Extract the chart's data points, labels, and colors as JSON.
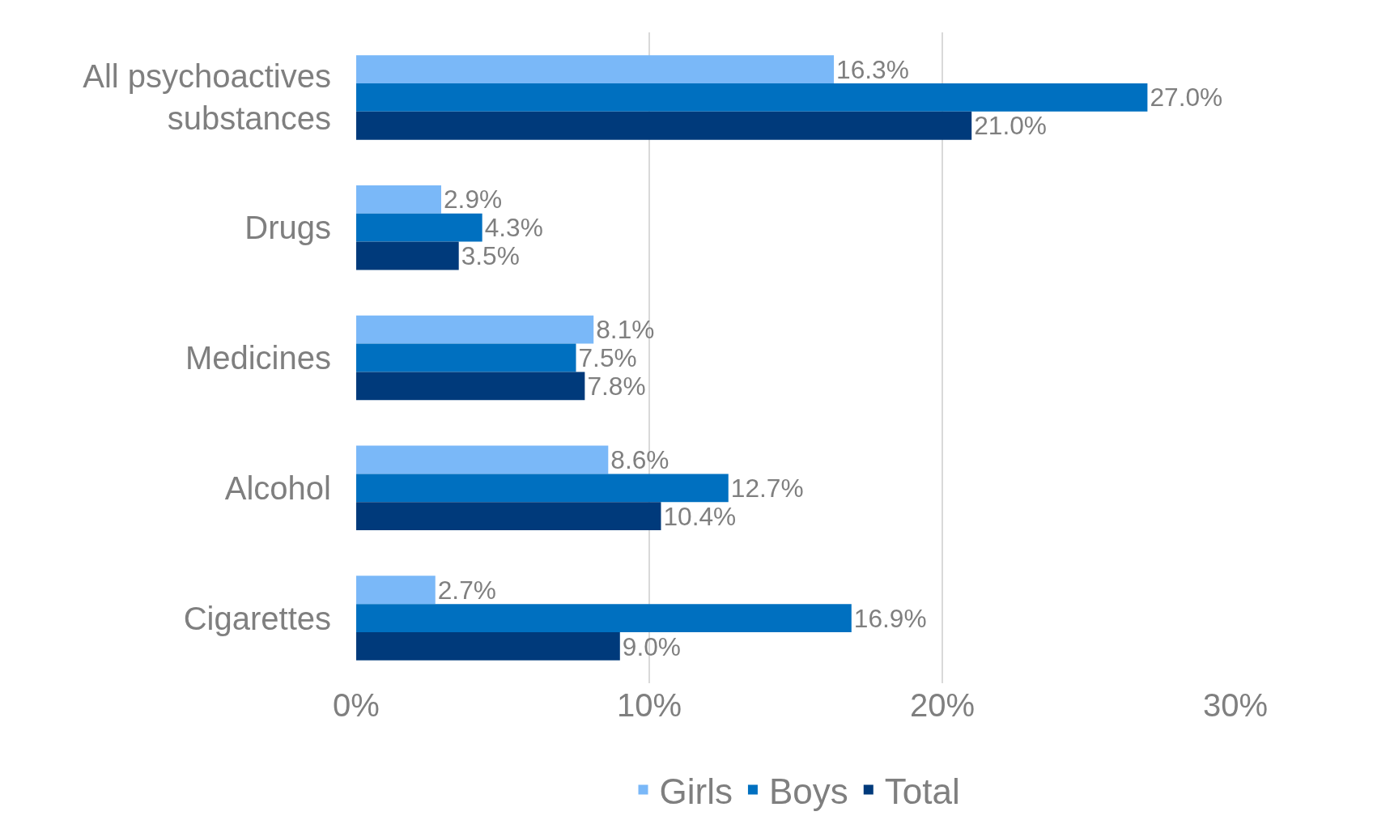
{
  "chart_data": {
    "type": "bar",
    "orientation": "horizontal",
    "categories": [
      "All psychoactives substances",
      "Drugs",
      "Medicines",
      "Alcohol",
      "Cigarettes"
    ],
    "series": [
      {
        "name": "Girls",
        "color": "#7ab8f8",
        "values": [
          16.3,
          2.9,
          8.1,
          8.6,
          2.7
        ],
        "value_labels": [
          "16.3%",
          "2.9%",
          "8.1%",
          "8.6%",
          "2.7%"
        ]
      },
      {
        "name": "Boys",
        "color": "#0070c0",
        "values": [
          27.0,
          4.3,
          7.5,
          12.7,
          16.9
        ],
        "value_labels": [
          "27.0%",
          "4.3%",
          "7.5%",
          "12.7%",
          "16.9%"
        ]
      },
      {
        "name": "Total",
        "color": "#003a7b",
        "values": [
          21.0,
          3.5,
          7.8,
          10.4,
          9.0
        ],
        "value_labels": [
          "21.0%",
          "3.5%",
          "7.8%",
          "10.4%",
          "9.0%"
        ]
      }
    ],
    "xlim": [
      0,
      30
    ],
    "xticks": [
      {
        "value": 0,
        "label": "0%"
      },
      {
        "value": 10,
        "label": "10%"
      },
      {
        "value": 20,
        "label": "20%"
      },
      {
        "value": 30,
        "label": "30%"
      }
    ],
    "grid": "x",
    "legend": "bottom"
  }
}
